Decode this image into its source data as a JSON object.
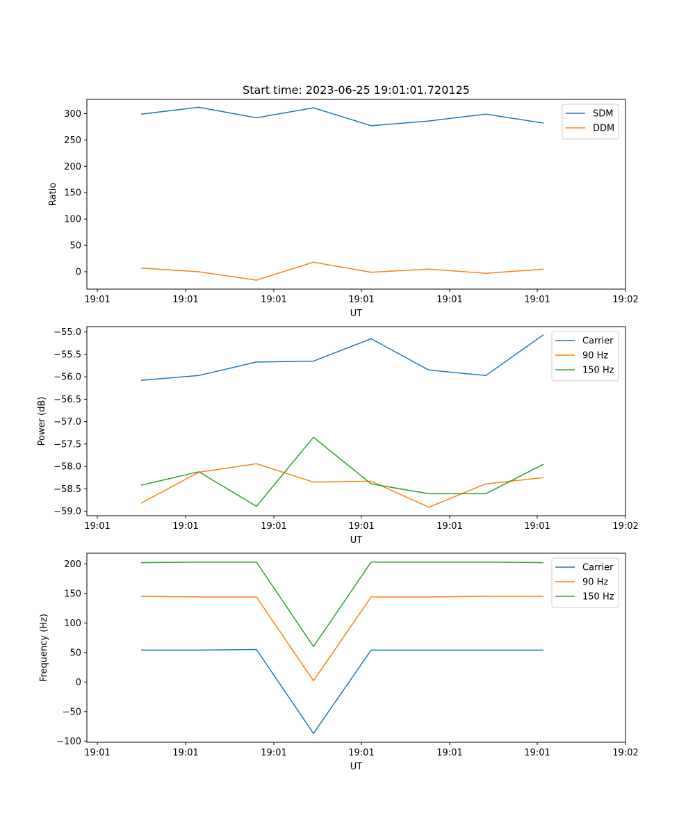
{
  "chart_data": [
    {
      "type": "line",
      "title": "Start time: 2023-06-25 19:01:01.720125",
      "xlabel": "UT",
      "ylabel": "Ratio",
      "x_tick_labels": [
        "19:01",
        "19:01",
        "19:01",
        "19:01",
        "19:01",
        "19:01",
        "19:02"
      ],
      "y_ticks": [
        0,
        50,
        100,
        150,
        200,
        250,
        300
      ],
      "ylim": [
        -33,
        327
      ],
      "legend_position": "top-right",
      "grid": false,
      "series": [
        {
          "name": "SDM",
          "color": "#1f77b4",
          "values": [
            299,
            312,
            292,
            311,
            277,
            286,
            299,
            282
          ]
        },
        {
          "name": "DDM",
          "color": "#ff7f0e",
          "values": [
            7,
            0,
            -16,
            18,
            -1,
            5,
            -3,
            5
          ]
        }
      ]
    },
    {
      "type": "line",
      "title": "",
      "xlabel": "UT",
      "ylabel": "Power (dB)",
      "x_tick_labels": [
        "19:01",
        "19:01",
        "19:01",
        "19:01",
        "19:01",
        "19:01",
        "19:02"
      ],
      "y_ticks": [
        -59.0,
        -58.5,
        -58.0,
        -57.5,
        -57.0,
        -56.5,
        -56.0,
        -55.5,
        -55.0
      ],
      "ylim": [
        -59.1,
        -54.88
      ],
      "legend_position": "top-right",
      "grid": false,
      "series": [
        {
          "name": "Carrier",
          "color": "#1f77b4",
          "values": [
            -56.08,
            -55.97,
            -55.67,
            -55.65,
            -55.15,
            -55.85,
            -55.97,
            -55.06
          ]
        },
        {
          "name": "90 Hz",
          "color": "#ff7f0e",
          "values": [
            -58.82,
            -58.13,
            -57.94,
            -58.35,
            -58.33,
            -58.91,
            -58.39,
            -58.25
          ]
        },
        {
          "name": "150 Hz",
          "color": "#2ca02c",
          "values": [
            -58.42,
            -58.12,
            -58.89,
            -57.35,
            -58.39,
            -58.61,
            -58.61,
            -57.95
          ]
        }
      ]
    },
    {
      "type": "line",
      "title": "",
      "xlabel": "UT",
      "ylabel": "Frequency (Hz)",
      "x_tick_labels": [
        "19:01",
        "19:01",
        "19:01",
        "19:01",
        "19:01",
        "19:01",
        "19:02"
      ],
      "y_ticks": [
        -100,
        -50,
        0,
        50,
        100,
        150,
        200
      ],
      "ylim": [
        -102,
        218
      ],
      "legend_position": "top-right",
      "grid": false,
      "series": [
        {
          "name": "Carrier",
          "color": "#1f77b4",
          "values": [
            54,
            54,
            55,
            -87,
            54,
            54,
            54,
            54
          ]
        },
        {
          "name": "90 Hz",
          "color": "#ff7f0e",
          "values": [
            145,
            144,
            144,
            2,
            144,
            144,
            145,
            145
          ]
        },
        {
          "name": "150 Hz",
          "color": "#2ca02c",
          "values": [
            202,
            203,
            203,
            60,
            203,
            203,
            203,
            202
          ]
        }
      ]
    }
  ]
}
